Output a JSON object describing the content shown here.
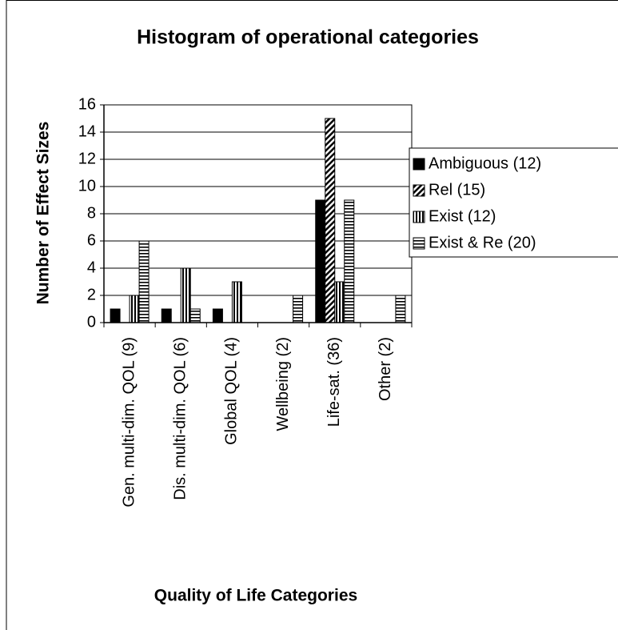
{
  "chart_data": {
    "type": "bar",
    "title": "Histogram of operational categories",
    "xlabel": "Quality of Life Categories",
    "ylabel": "Number of Effect Sizes",
    "categories": [
      "Gen. multi-dim. QOL (9)",
      "Dis. multi-dim. QOL (6)",
      "Global QOL (4)",
      "Wellbeing (2)",
      "Life-sat. (36)",
      "Other (2)"
    ],
    "series": [
      {
        "name": "Ambiguous (12)",
        "color": "#000000",
        "pattern": "solid",
        "values": [
          1,
          1,
          1,
          0,
          9,
          0
        ]
      },
      {
        "name": "Rel (15)",
        "color": "#000000",
        "pattern": "diagonal",
        "values": [
          0,
          0,
          0,
          0,
          15,
          0
        ]
      },
      {
        "name": "Exist (12)",
        "color": "#000000",
        "pattern": "vertical",
        "values": [
          2,
          4,
          3,
          0,
          3,
          0
        ]
      },
      {
        "name": "Exist & Re (20)",
        "color": "#000000",
        "pattern": "horizontal",
        "values": [
          6,
          1,
          0,
          2,
          9,
          2
        ]
      }
    ],
    "ylim": [
      0,
      16
    ],
    "yticks": [
      0,
      2,
      4,
      6,
      8,
      10,
      12,
      14,
      16
    ],
    "grid": true,
    "legend": "right"
  }
}
